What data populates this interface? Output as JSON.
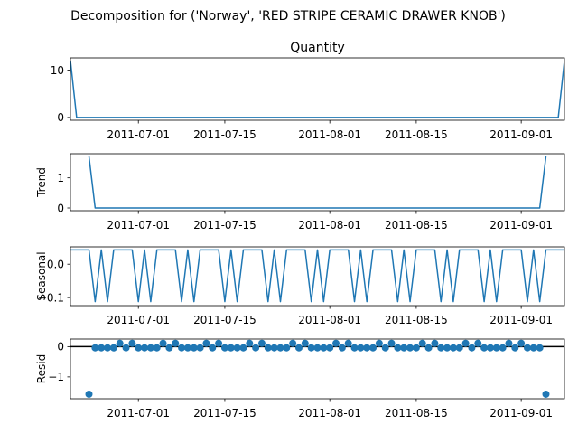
{
  "chart_data": {
    "type": "line",
    "suptitle": "Decomposition for ('Norway', 'RED STRIPE CERAMIC DRAWER KNOB')",
    "x_start": "2011-06-20",
    "x_end": "2011-09-08",
    "x_ticks": [
      "2011-07-01",
      "2011-07-15",
      "2011-08-01",
      "2011-08-15",
      "2011-09-01"
    ],
    "panels": [
      {
        "name": "quantity",
        "title": "Quantity",
        "ylabel": "",
        "kind": "line",
        "ylim": [
          -0.6,
          12.6
        ],
        "yticks": [
          0,
          10
        ],
        "series": [
          {
            "x": "2011-06-20",
            "y": 12
          },
          {
            "x": "2011-06-21",
            "y": 0
          },
          {
            "x": "2011-09-07",
            "y": 0
          },
          {
            "x": "2011-09-08",
            "y": 12
          }
        ]
      },
      {
        "name": "trend",
        "title": "",
        "ylabel": "Trend",
        "kind": "line",
        "ylim": [
          -0.09,
          1.8
        ],
        "yticks": [
          0,
          1
        ],
        "series": [
          {
            "x": "2011-06-23",
            "y": 1.71
          },
          {
            "x": "2011-06-24",
            "y": 0
          },
          {
            "x": "2011-09-04",
            "y": 0
          },
          {
            "x": "2011-09-05",
            "y": 1.71
          }
        ]
      },
      {
        "name": "seasonal",
        "title": "",
        "ylabel": "Seasonal",
        "kind": "seasonal",
        "ylim": [
          -0.124,
          0.052
        ],
        "yticks": [
          0.0,
          -0.1
        ],
        "yticklabels": [
          "0.0",
          "−0.1"
        ],
        "pattern": [
          0.043,
          0.043,
          0.043,
          0.043,
          -0.112,
          0.043,
          -0.112
        ],
        "pattern_start": "2011-06-20"
      },
      {
        "name": "resid",
        "title": "",
        "ylabel": "Resid",
        "kind": "resid",
        "ylim": [
          -1.72,
          0.25
        ],
        "yticks": [
          0,
          -1
        ],
        "yticklabels": [
          "0",
          "−1"
        ],
        "points": [
          {
            "x": "2011-06-23",
            "y": -1.57
          },
          {
            "x": "2011-06-24",
            "y": -0.04
          },
          {
            "x": "2011-06-25",
            "y": -0.04
          },
          {
            "x": "2011-06-26",
            "y": -0.04
          },
          {
            "x": "2011-06-27",
            "y": -0.04
          },
          {
            "x": "2011-06-28",
            "y": 0.11
          },
          {
            "x": "2011-06-29",
            "y": -0.04
          },
          {
            "x": "2011-06-30",
            "y": 0.11
          },
          {
            "x": "2011-07-01",
            "y": -0.04
          },
          {
            "x": "2011-07-02",
            "y": -0.04
          },
          {
            "x": "2011-07-03",
            "y": -0.04
          },
          {
            "x": "2011-07-04",
            "y": -0.04
          },
          {
            "x": "2011-07-05",
            "y": 0.11
          },
          {
            "x": "2011-07-06",
            "y": -0.04
          },
          {
            "x": "2011-07-07",
            "y": 0.11
          },
          {
            "x": "2011-07-08",
            "y": -0.04
          },
          {
            "x": "2011-07-09",
            "y": -0.04
          },
          {
            "x": "2011-07-10",
            "y": -0.04
          },
          {
            "x": "2011-07-11",
            "y": -0.04
          },
          {
            "x": "2011-07-12",
            "y": 0.11
          },
          {
            "x": "2011-07-13",
            "y": -0.04
          },
          {
            "x": "2011-07-14",
            "y": 0.11
          },
          {
            "x": "2011-07-15",
            "y": -0.04
          },
          {
            "x": "2011-07-16",
            "y": -0.04
          },
          {
            "x": "2011-07-17",
            "y": -0.04
          },
          {
            "x": "2011-07-18",
            "y": -0.04
          },
          {
            "x": "2011-07-19",
            "y": 0.11
          },
          {
            "x": "2011-07-20",
            "y": -0.04
          },
          {
            "x": "2011-07-21",
            "y": 0.11
          },
          {
            "x": "2011-07-22",
            "y": -0.04
          },
          {
            "x": "2011-07-23",
            "y": -0.04
          },
          {
            "x": "2011-07-24",
            "y": -0.04
          },
          {
            "x": "2011-07-25",
            "y": -0.04
          },
          {
            "x": "2011-07-26",
            "y": 0.11
          },
          {
            "x": "2011-07-27",
            "y": -0.04
          },
          {
            "x": "2011-07-28",
            "y": 0.11
          },
          {
            "x": "2011-07-29",
            "y": -0.04
          },
          {
            "x": "2011-07-30",
            "y": -0.04
          },
          {
            "x": "2011-07-31",
            "y": -0.04
          },
          {
            "x": "2011-08-01",
            "y": -0.04
          },
          {
            "x": "2011-08-02",
            "y": 0.11
          },
          {
            "x": "2011-08-03",
            "y": -0.04
          },
          {
            "x": "2011-08-04",
            "y": 0.11
          },
          {
            "x": "2011-08-05",
            "y": -0.04
          },
          {
            "x": "2011-08-06",
            "y": -0.04
          },
          {
            "x": "2011-08-07",
            "y": -0.04
          },
          {
            "x": "2011-08-08",
            "y": -0.04
          },
          {
            "x": "2011-08-09",
            "y": 0.11
          },
          {
            "x": "2011-08-10",
            "y": -0.04
          },
          {
            "x": "2011-08-11",
            "y": 0.11
          },
          {
            "x": "2011-08-12",
            "y": -0.04
          },
          {
            "x": "2011-08-13",
            "y": -0.04
          },
          {
            "x": "2011-08-14",
            "y": -0.04
          },
          {
            "x": "2011-08-15",
            "y": -0.04
          },
          {
            "x": "2011-08-16",
            "y": 0.11
          },
          {
            "x": "2011-08-17",
            "y": -0.04
          },
          {
            "x": "2011-08-18",
            "y": 0.11
          },
          {
            "x": "2011-08-19",
            "y": -0.04
          },
          {
            "x": "2011-08-20",
            "y": -0.04
          },
          {
            "x": "2011-08-21",
            "y": -0.04
          },
          {
            "x": "2011-08-22",
            "y": -0.04
          },
          {
            "x": "2011-08-23",
            "y": 0.11
          },
          {
            "x": "2011-08-24",
            "y": -0.04
          },
          {
            "x": "2011-08-25",
            "y": 0.11
          },
          {
            "x": "2011-08-26",
            "y": -0.04
          },
          {
            "x": "2011-08-27",
            "y": -0.04
          },
          {
            "x": "2011-08-28",
            "y": -0.04
          },
          {
            "x": "2011-08-29",
            "y": -0.04
          },
          {
            "x": "2011-08-30",
            "y": 0.11
          },
          {
            "x": "2011-08-31",
            "y": -0.04
          },
          {
            "x": "2011-09-01",
            "y": 0.11
          },
          {
            "x": "2011-09-02",
            "y": -0.04
          },
          {
            "x": "2011-09-03",
            "y": -0.04
          },
          {
            "x": "2011-09-04",
            "y": -0.04
          },
          {
            "x": "2011-09-05",
            "y": -1.57
          }
        ]
      }
    ],
    "line_color": "#1f77b4",
    "grid": false,
    "legend": "none"
  }
}
